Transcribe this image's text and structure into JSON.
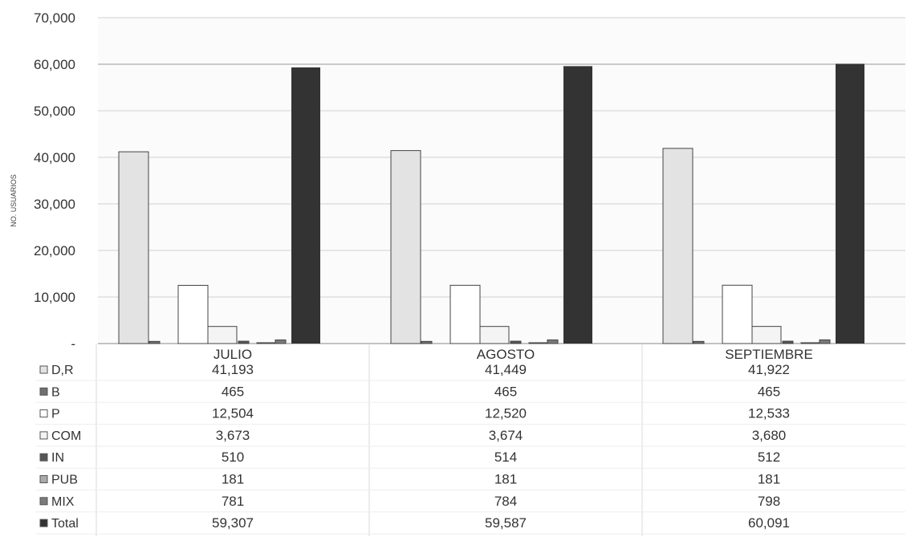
{
  "chart_data": {
    "type": "bar",
    "ylabel": "NO. USUARIOS",
    "ylim": [
      0,
      70000
    ],
    "yticks": [
      {
        "value": 0,
        "label": "-"
      },
      {
        "value": 10000,
        "label": "10,000"
      },
      {
        "value": 20000,
        "label": "20,000"
      },
      {
        "value": 30000,
        "label": "30,000"
      },
      {
        "value": 40000,
        "label": "40,000"
      },
      {
        "value": 50000,
        "label": "50,000"
      },
      {
        "value": 60000,
        "label": "60,000"
      },
      {
        "value": 70000,
        "label": "70,000"
      }
    ],
    "grid": true,
    "legend": "data-table",
    "categories": [
      "JULIO",
      "AGOSTO",
      "SEPTIEMBRE"
    ],
    "series": [
      {
        "name": "D,R",
        "values": [
          41193,
          41449,
          41922
        ],
        "labels": [
          "41,193",
          "41,449",
          "41,922"
        ],
        "color": "#e3e3e3"
      },
      {
        "name": "B",
        "values": [
          465,
          465,
          465
        ],
        "labels": [
          "465",
          "465",
          "465"
        ],
        "color": "#6f6f6f"
      },
      {
        "name": "P",
        "values": [
          12504,
          12520,
          12533
        ],
        "labels": [
          "12,504",
          "12,520",
          "12,533"
        ],
        "color": "#ffffff"
      },
      {
        "name": "COM",
        "values": [
          3673,
          3674,
          3680
        ],
        "labels": [
          "3,673",
          "3,674",
          "3,680"
        ],
        "color": "#f4f4f4"
      },
      {
        "name": "IN",
        "values": [
          510,
          514,
          512
        ],
        "labels": [
          "510",
          "514",
          "512"
        ],
        "color": "#555555"
      },
      {
        "name": "PUB",
        "values": [
          181,
          181,
          181
        ],
        "labels": [
          "181",
          "181",
          "181"
        ],
        "color": "#aaaaaa"
      },
      {
        "name": "MIX",
        "values": [
          781,
          784,
          798
        ],
        "labels": [
          "781",
          "784",
          "798"
        ],
        "color": "#7a7a7a"
      },
      {
        "name": "Total",
        "values": [
          59307,
          59587,
          60091
        ],
        "labels": [
          "59,307",
          "59,587",
          "60,091"
        ],
        "color": "#333333"
      }
    ]
  }
}
